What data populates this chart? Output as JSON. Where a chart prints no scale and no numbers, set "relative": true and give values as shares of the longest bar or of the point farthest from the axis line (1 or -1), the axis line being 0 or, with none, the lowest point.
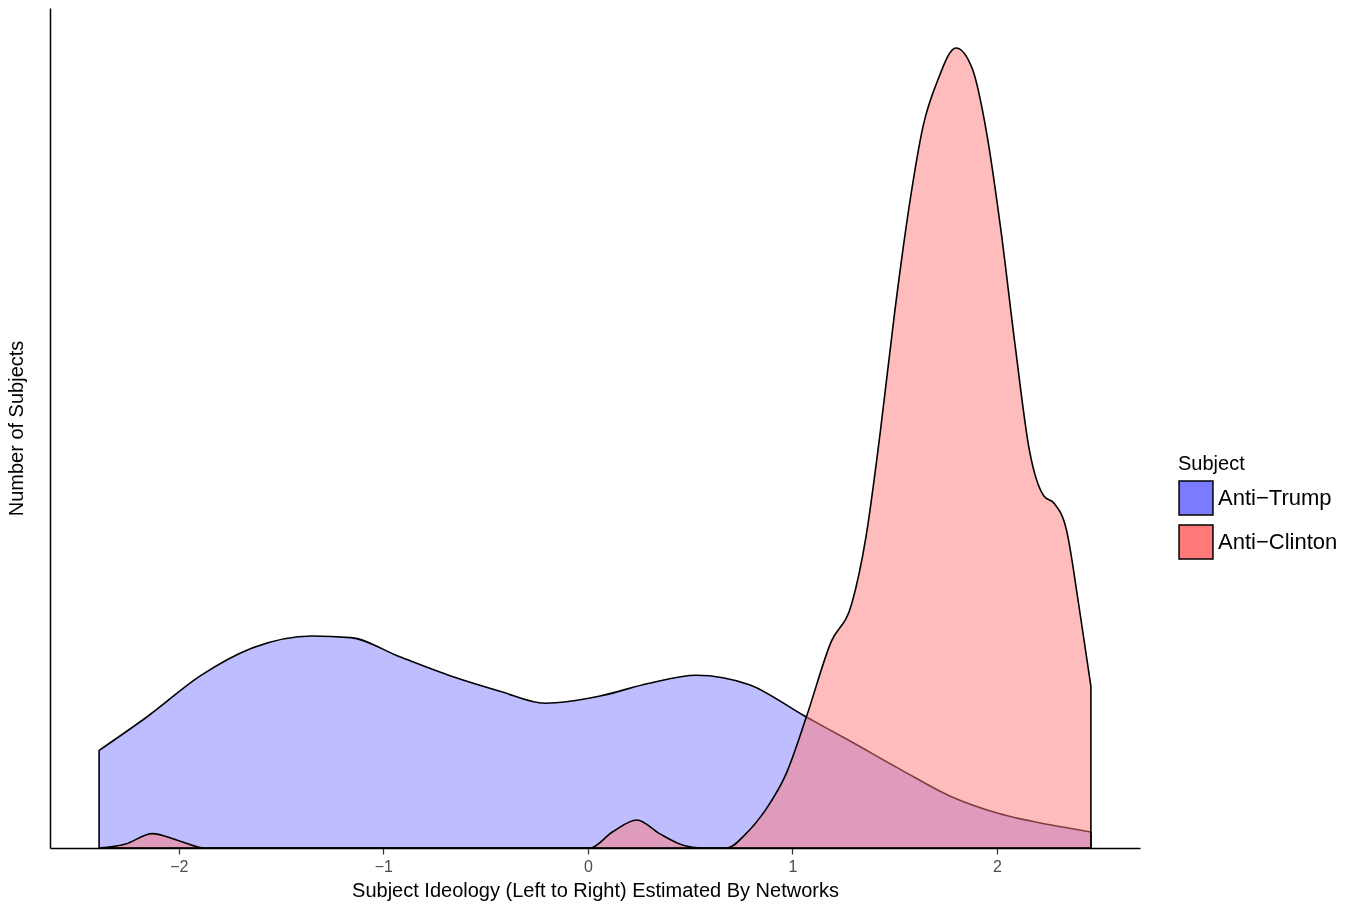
{
  "chart_data": {
    "type": "area",
    "xlabel": "Subject Ideology (Left to Right) Estimated By Networks",
    "ylabel": "Number of Subjects",
    "legend_title": "Subject",
    "legend": "right",
    "relative": true,
    "xlim": [
      -2.63,
      2.7
    ],
    "xticks": [
      {
        "value": -2,
        "label": "−2"
      },
      {
        "value": -1,
        "label": "−1"
      },
      0,
      1,
      2
    ],
    "series": [
      {
        "name": "Anti−Trump",
        "color": "#7b7bff",
        "x": [
          -2.39,
          -2.15,
          -1.89,
          -1.65,
          -1.35,
          -1.16,
          -0.92,
          -0.67,
          -0.43,
          -0.21,
          0.06,
          0.3,
          0.53,
          0.79,
          1.06,
          1.28,
          1.53,
          1.77,
          2.01,
          2.26,
          2.46
        ],
        "values": [
          0.122,
          0.165,
          0.216,
          0.249,
          0.265,
          0.263,
          0.239,
          0.215,
          0.196,
          0.181,
          0.19,
          0.206,
          0.216,
          0.204,
          0.165,
          0.134,
          0.098,
          0.065,
          0.043,
          0.029,
          0.02
        ]
      },
      {
        "name": "Anti−Clinton",
        "color": "#ff7979",
        "x": [
          -2.39,
          -2.26,
          -2.13,
          -2.0,
          -1.87,
          -1.4,
          0.01,
          0.12,
          0.24,
          0.35,
          0.47,
          0.55,
          0.68,
          0.77,
          0.87,
          0.97,
          1.07,
          1.19,
          1.29,
          1.36,
          1.43,
          1.5,
          1.57,
          1.64,
          1.71,
          1.8,
          1.88,
          1.95,
          2.02,
          2.09,
          2.16,
          2.23,
          2.28,
          2.34,
          2.4,
          2.46
        ],
        "values": [
          0,
          0.005,
          0.018,
          0.009,
          0,
          0,
          0,
          0.02,
          0.035,
          0.018,
          0.003,
          0,
          0,
          0.017,
          0.048,
          0.093,
          0.165,
          0.258,
          0.305,
          0.389,
          0.52,
          0.669,
          0.8,
          0.903,
          0.959,
          1,
          0.974,
          0.894,
          0.772,
          0.627,
          0.496,
          0.44,
          0.431,
          0.398,
          0.305,
          0.202
        ]
      }
    ]
  }
}
